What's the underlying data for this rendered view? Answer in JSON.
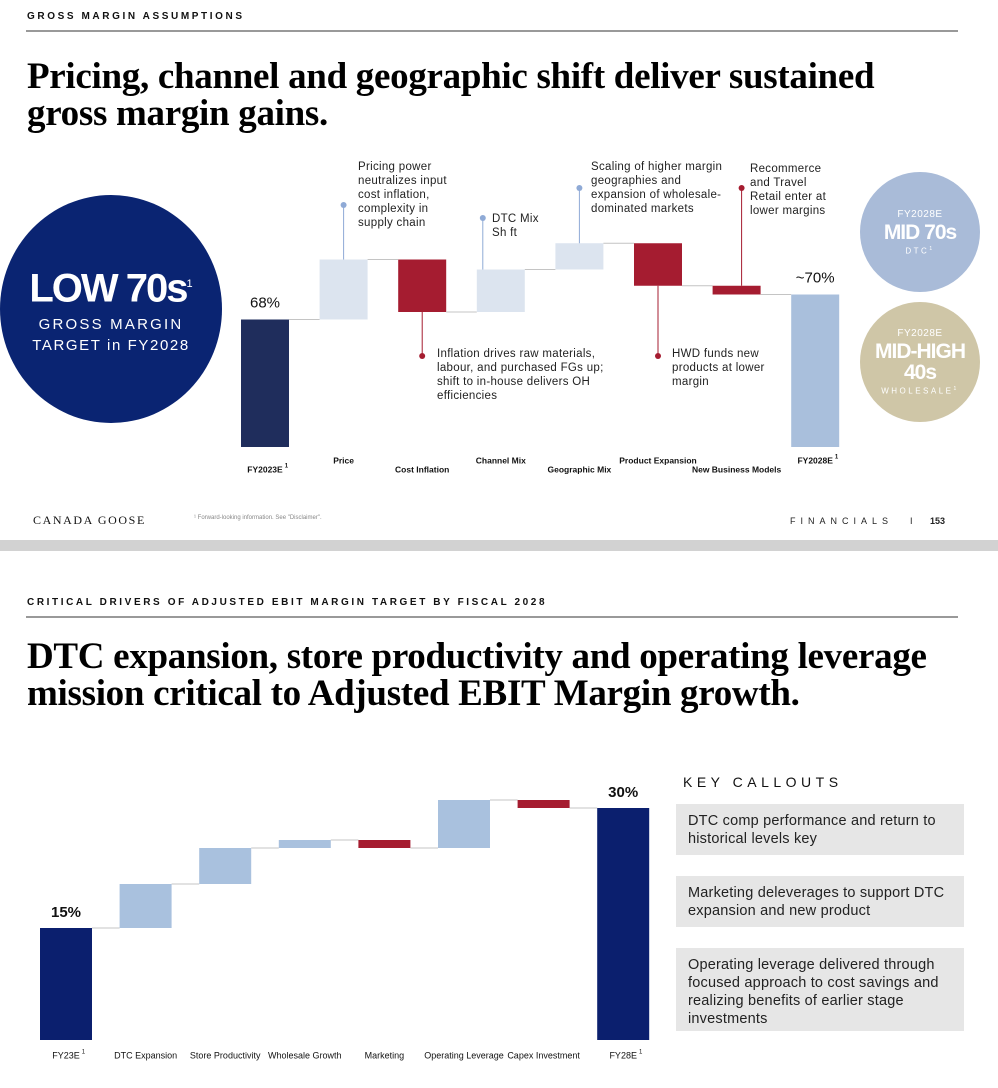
{
  "slide1": {
    "header": "GROSS MARGIN ASSUMPTIONS",
    "title": "Pricing, channel and geographic shift deliver sustained gross margin gains.",
    "big_stat": {
      "value": "LOW 70s",
      "note": "1",
      "lines": [
        "GROSS MARGIN",
        "TARGET in FY2028"
      ]
    },
    "side_stats": [
      {
        "label": "FY2028E",
        "value": [
          "MID 70s"
        ],
        "sub": "DTC",
        "note": "1"
      },
      {
        "label": "FY2028E",
        "value": [
          "MID-HIGH",
          "40s"
        ],
        "sub": "WHOLESALE",
        "note": "1"
      }
    ],
    "footer": {
      "brand": "CANADA GOOSE",
      "note": "¹ Forward-looking information. See \"Disclaimer\".",
      "section": "FINANCIALS",
      "separator": "I",
      "page": "153"
    }
  },
  "slide2": {
    "header": "CRITICAL DRIVERS OF ADJUSTED EBIT MARGIN TARGET BY FISCAL 2028",
    "title": "DTC expansion, store productivity and operating leverage mission critical to Adjusted EBIT Margin growth.",
    "callouts": {
      "title": "KEY CALLOUTS",
      "items": [
        "DTC comp performance and return to historical levels key",
        "Marketing deleverages to support DTC expansion and new product",
        "Operating leverage delivered through focused approach to cost savings and realizing benefits of earlier stage investments"
      ]
    }
  },
  "chart_data": [
    {
      "type": "waterfall",
      "categories": [
        "FY2023E",
        "Price",
        "Cost Inflation",
        "Channel Mix",
        "Geographic Mix",
        "Product Expansion",
        "New Business Models",
        "FY2028E"
      ],
      "category_notes": [
        "1",
        null,
        null,
        null,
        null,
        null,
        null,
        "1"
      ],
      "values": [
        68,
        4.8,
        -4.2,
        3.4,
        2.1,
        -3.4,
        -0.7,
        70
      ],
      "value_labels": [
        "68%",
        null,
        null,
        null,
        null,
        null,
        null,
        "~70%"
      ],
      "totals": [
        true,
        false,
        false,
        false,
        false,
        false,
        false,
        true
      ],
      "colors": [
        "#1f2d5c",
        "#dce4ef",
        "#a51c30",
        "#dce4ef",
        "#dce4ef",
        "#a51c30",
        "#a51c30",
        "#a9bfdc"
      ],
      "ylim": [
        57.8,
        78
      ],
      "annotations": [
        "Pricing power neutralizes input cost inflation, complexity in supply chain",
        "Inflation drives raw materials, labour, and purchased FGs up; shift to in-house delivers OH efficiencies",
        "DTC Mix Sh ft",
        "Scaling of higher margin geographies and expansion of wholesale-dominated markets",
        "HWD funds new products at lower margin",
        "Recommerce and Travel Retail enter at lower margins"
      ]
    },
    {
      "type": "waterfall",
      "categories": [
        "FY23E",
        "DTC Expansion",
        "Store Productivity",
        "Wholesale Growth",
        "Marketing",
        "Operating Leverage",
        "Capex Investment",
        "FY28E"
      ],
      "category_notes": [
        "1",
        null,
        null,
        null,
        null,
        null,
        null,
        "1"
      ],
      "values": [
        15,
        5.5,
        4.5,
        1,
        -1,
        6,
        -1,
        30
      ],
      "value_labels": [
        "15%",
        null,
        null,
        null,
        null,
        null,
        null,
        "30%"
      ],
      "totals": [
        true,
        false,
        false,
        false,
        false,
        false,
        false,
        true
      ],
      "colors": [
        "#0b1f6e",
        "#a9c1de",
        "#a9c1de",
        "#a9c1de",
        "#a51c30",
        "#a9c1de",
        "#a51c30",
        "#0b1f6e"
      ],
      "ylim": [
        1,
        32
      ]
    }
  ]
}
